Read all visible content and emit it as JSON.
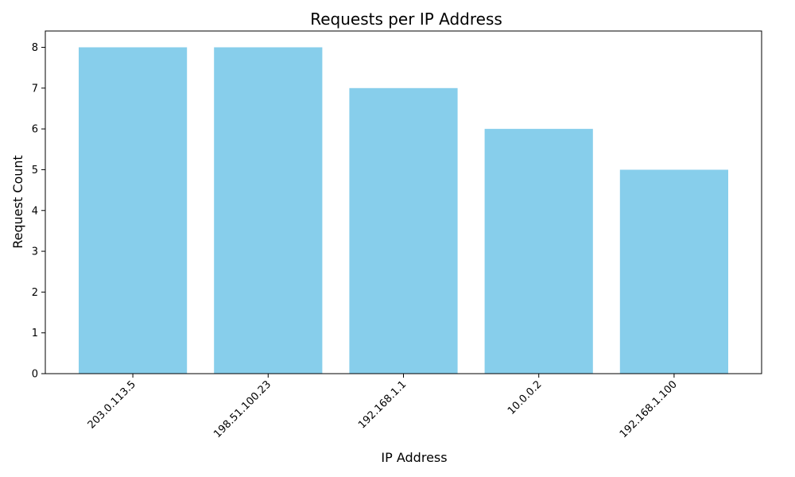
{
  "chart_data": {
    "type": "bar",
    "title": "Requests per IP Address",
    "xlabel": "IP Address",
    "ylabel": "Request Count",
    "categories": [
      "203.0.113.5",
      "198.51.100.23",
      "192.168.1.1",
      "10.0.0.2",
      "192.168.1.100"
    ],
    "values": [
      8,
      8,
      7,
      6,
      5
    ],
    "ylim": [
      0,
      8.4
    ],
    "yticks": [
      0,
      1,
      2,
      3,
      4,
      5,
      6,
      7,
      8
    ],
    "bar_color": "#87CEEB",
    "grid": false,
    "legend": "none"
  }
}
